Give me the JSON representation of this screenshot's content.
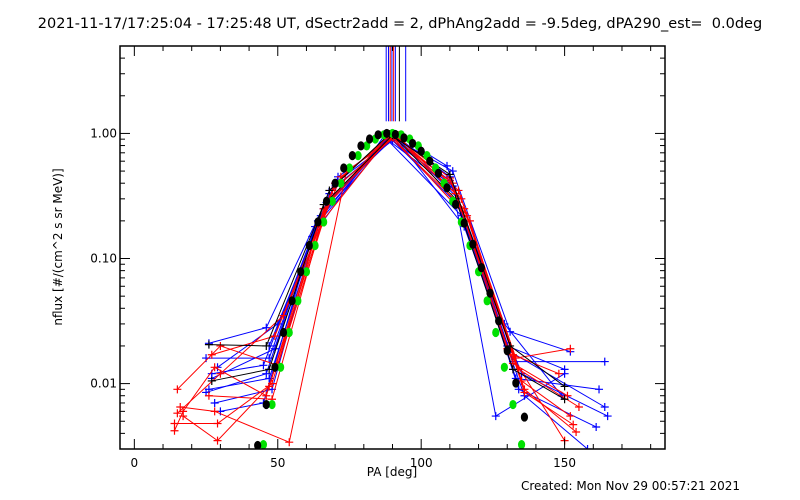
{
  "chart_data": {
    "type": "line",
    "title": "2021-11-17/17:25:04 - 17:25:48 UT, dSectr2add = 2, dPhAng2add = -9.5deg, dPA290_est=  0.0deg",
    "xlabel": "PA [deg]",
    "ylabel": "nflux [#/(cm^2 s sr MeV)]",
    "xlim": [
      -5,
      185
    ],
    "ylim": [
      0.003,
      5
    ],
    "yscale": "log",
    "x_ticks": [
      0,
      50,
      100,
      150
    ],
    "x_tick_labels": [
      "0",
      "50",
      "100",
      "150"
    ],
    "y_ticks": [
      0.01,
      0.1,
      1
    ],
    "y_tick_labels": [
      "0.01",
      "0.10",
      "1.00"
    ],
    "footer": "Created: Mon Nov 29 00:57:21 2021",
    "colors": {
      "red": "#ff0000",
      "blue": "#0000ff",
      "black": "#000000",
      "green": "#00e000"
    },
    "vertical_lines": [
      {
        "color": "blue",
        "x": 87.8,
        "ymin": 1.25
      },
      {
        "color": "blue",
        "x": 88.6,
        "ymin": 1.25
      },
      {
        "color": "red",
        "x": 89.2,
        "ymin": 1.25
      },
      {
        "color": "blue",
        "x": 89.8,
        "ymin": 1.25
      },
      {
        "color": "red",
        "x": 90.4,
        "ymin": 1.25
      },
      {
        "color": "blue",
        "x": 91.0,
        "ymin": 1.25
      },
      {
        "color": "black",
        "x": 92.4,
        "ymin": 1.25
      },
      {
        "color": "blue",
        "x": 94.6,
        "ymin": 1.25
      }
    ],
    "series": [
      {
        "name": "blue-1",
        "color": "blue",
        "points": [
          [
            26,
            0.021
          ],
          [
            46,
            0.028
          ],
          [
            68,
            0.33
          ],
          [
            90,
            0.93
          ],
          [
            111,
            0.5
          ],
          [
            131,
            0.026
          ],
          [
            152,
            0.018
          ]
        ]
      },
      {
        "name": "blue-2",
        "color": "blue",
        "points": [
          [
            25,
            0.016
          ],
          [
            47,
            0.016
          ],
          [
            66,
            0.25
          ],
          [
            89,
            0.97
          ],
          [
            110,
            0.42
          ],
          [
            130,
            0.02
          ],
          [
            150,
            0.013
          ]
        ]
      },
      {
        "name": "blue-3",
        "color": "blue",
        "points": [
          [
            27,
            0.012
          ],
          [
            45,
            0.014
          ],
          [
            64,
            0.2
          ],
          [
            88,
            0.9
          ],
          [
            112,
            0.35
          ],
          [
            132,
            0.015
          ],
          [
            164,
            0.015
          ]
        ]
      },
      {
        "name": "blue-4",
        "color": "blue",
        "points": [
          [
            26,
            0.009
          ],
          [
            47,
            0.011
          ],
          [
            67,
            0.28
          ],
          [
            91,
            0.95
          ],
          [
            113,
            0.3
          ],
          [
            133,
            0.011
          ],
          [
            162,
            0.009
          ]
        ]
      },
      {
        "name": "blue-5",
        "color": "blue",
        "points": [
          [
            28,
            0.007
          ],
          [
            48,
            0.009
          ],
          [
            65,
            0.22
          ],
          [
            90,
            1.0
          ],
          [
            110,
            0.45
          ],
          [
            129,
            0.03
          ],
          [
            149,
            0.008
          ]
        ]
      },
      {
        "name": "blue-6",
        "color": "blue",
        "points": [
          [
            25,
            0.0085
          ],
          [
            46,
            0.012
          ],
          [
            63,
            0.18
          ],
          [
            89,
            0.92
          ],
          [
            111,
            0.38
          ],
          [
            131,
            0.018
          ],
          [
            164,
            0.0065
          ]
        ]
      },
      {
        "name": "blue-7",
        "color": "blue",
        "points": [
          [
            27,
            0.011
          ],
          [
            49,
            0.019
          ],
          [
            69,
            0.36
          ],
          [
            92,
            0.96
          ],
          [
            109,
            0.55
          ],
          [
            134,
            0.009
          ],
          [
            161,
            0.0045
          ]
        ]
      },
      {
        "name": "blue-8",
        "color": "blue",
        "points": [
          [
            29,
            0.0135
          ],
          [
            50,
            0.03
          ],
          [
            70,
            0.4
          ],
          [
            90,
            0.88
          ],
          [
            112,
            0.28
          ],
          [
            126,
            0.0055
          ],
          [
            150,
            0.012
          ]
        ]
      },
      {
        "name": "blue-9",
        "color": "blue",
        "points": [
          [
            30,
            0.006
          ],
          [
            45,
            0.007
          ],
          [
            62,
            0.15
          ],
          [
            87,
            0.95
          ],
          [
            114,
            0.22
          ],
          [
            135,
            0.012
          ],
          [
            165,
            0.0055
          ]
        ]
      },
      {
        "name": "blue-10",
        "color": "blue",
        "points": [
          [
            47,
            0.02
          ],
          [
            71,
            0.45
          ],
          [
            91,
            0.93
          ],
          [
            115,
            0.18
          ],
          [
            136,
            0.008
          ],
          [
            158,
            0.003
          ]
        ]
      },
      {
        "name": "red-1",
        "color": "red",
        "points": [
          [
            15,
            0.009
          ],
          [
            30,
            0.02
          ],
          [
            50,
            0.014
          ],
          [
            70,
            0.4
          ],
          [
            90,
            1.0
          ],
          [
            113,
            0.35
          ],
          [
            133,
            0.016
          ],
          [
            152,
            0.019
          ]
        ]
      },
      {
        "name": "red-2",
        "color": "red",
        "points": [
          [
            15,
            0.0058
          ],
          [
            30,
            0.012
          ],
          [
            52,
            0.035
          ],
          [
            72,
            0.45
          ],
          [
            91,
            0.98
          ],
          [
            114,
            0.3
          ],
          [
            134,
            0.013
          ],
          [
            155,
            0.0065
          ]
        ]
      },
      {
        "name": "red-3",
        "color": "red",
        "points": [
          [
            14,
            0.0048
          ],
          [
            29,
            0.0048
          ],
          [
            48,
            0.01
          ],
          [
            66,
            0.25
          ],
          [
            90,
            0.96
          ],
          [
            112,
            0.33
          ],
          [
            132,
            0.0145
          ],
          [
            151,
            0.008
          ]
        ]
      },
      {
        "name": "red-4",
        "color": "red",
        "points": [
          [
            14,
            0.0042
          ],
          [
            17,
            0.006
          ],
          [
            28,
            0.0135
          ],
          [
            46,
            0.008
          ],
          [
            64,
            0.18
          ],
          [
            89,
            0.94
          ],
          [
            115,
            0.25
          ],
          [
            135,
            0.0105
          ],
          [
            152,
            0.0055
          ]
        ]
      },
      {
        "name": "red-5",
        "color": "red",
        "points": [
          [
            16,
            0.0065
          ],
          [
            28,
            0.006
          ],
          [
            54,
            0.0034
          ],
          [
            74,
            0.5
          ],
          [
            92,
            0.97
          ],
          [
            116,
            0.22
          ],
          [
            136,
            0.009
          ],
          [
            154,
            0.0041
          ]
        ]
      },
      {
        "name": "red-6",
        "color": "red",
        "points": [
          [
            17,
            0.0055
          ],
          [
            29,
            0.0035
          ],
          [
            47,
            0.0095
          ],
          [
            68,
            0.3
          ],
          [
            90,
            0.93
          ],
          [
            111,
            0.4
          ],
          [
            130,
            0.019
          ],
          [
            150,
            0.0035
          ]
        ]
      },
      {
        "name": "red-7",
        "color": "red",
        "points": [
          [
            26,
            0.008
          ],
          [
            48,
            0.0075
          ],
          [
            67,
            0.27
          ],
          [
            89,
            0.99
          ],
          [
            117,
            0.2
          ],
          [
            136,
            0.0085
          ],
          [
            153,
            0.0047
          ]
        ]
      },
      {
        "name": "red-8",
        "color": "red",
        "points": [
          [
            27,
            0.017
          ],
          [
            49,
            0.024
          ],
          [
            69,
            0.35
          ],
          [
            91,
            0.95
          ],
          [
            110,
            0.44
          ],
          [
            132,
            0.017
          ],
          [
            148,
            0.012
          ]
        ]
      },
      {
        "name": "black-1",
        "color": "black",
        "points": [
          [
            26,
            0.0205
          ],
          [
            46,
            0.02
          ],
          [
            68,
            0.35
          ],
          [
            89,
            0.99
          ],
          [
            110,
            0.47
          ],
          [
            131,
            0.02
          ],
          [
            150,
            0.0095
          ]
        ]
      },
      {
        "name": "black-2",
        "color": "black",
        "points": [
          [
            27,
            0.0105
          ],
          [
            47,
            0.013
          ],
          [
            66,
            0.27
          ],
          [
            90,
            0.97
          ],
          [
            112,
            0.3
          ],
          [
            132,
            0.013
          ],
          [
            150,
            0.0075
          ]
        ]
      }
    ],
    "fits": [
      {
        "name": "green-fit",
        "color": "green",
        "x": [
          45,
          48,
          51,
          54,
          57,
          60,
          63,
          66,
          69,
          72,
          75,
          78,
          81,
          84,
          87,
          90,
          93,
          96,
          99,
          102,
          105,
          108,
          111,
          114,
          117,
          120,
          123,
          126,
          129,
          132,
          135,
          138
        ],
        "y": [
          0.00325,
          0.0068,
          0.0135,
          0.0256,
          0.0459,
          0.0784,
          0.127,
          0.196,
          0.287,
          0.4,
          0.529,
          0.665,
          0.795,
          0.903,
          0.975,
          1.0,
          0.975,
          0.903,
          0.795,
          0.665,
          0.529,
          0.4,
          0.287,
          0.196,
          0.127,
          0.0784,
          0.0459,
          0.0256,
          0.0135,
          0.0068,
          0.00325,
          0.00147
        ]
      },
      {
        "name": "black-fit",
        "color": "black",
        "x": [
          43,
          46,
          49,
          52,
          55,
          58,
          61,
          64,
          67,
          70,
          73,
          76,
          79,
          82,
          85,
          88,
          91,
          94,
          97,
          100,
          103,
          106,
          109,
          112,
          115,
          118,
          121,
          124,
          127,
          130,
          133,
          136,
          139
        ],
        "y": [
          0.0032,
          0.0068,
          0.0135,
          0.0256,
          0.0459,
          0.0784,
          0.127,
          0.196,
          0.287,
          0.4,
          0.529,
          0.665,
          0.795,
          0.903,
          0.975,
          1.0,
          0.98,
          0.922,
          0.832,
          0.721,
          0.6,
          0.48,
          0.368,
          0.271,
          0.192,
          0.13,
          0.0846,
          0.0529,
          0.0317,
          0.0183,
          0.0101,
          0.0054,
          0.0027
        ]
      }
    ]
  }
}
